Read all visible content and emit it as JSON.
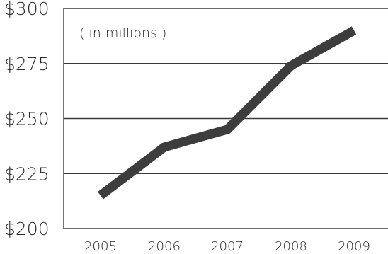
{
  "chart_data": {
    "type": "line",
    "title": "",
    "annotation": "( in millions )",
    "xlabel": "",
    "ylabel": "",
    "categories": [
      "2005",
      "2006",
      "2007",
      "2008",
      "2009"
    ],
    "series": [
      {
        "values": [
          215,
          237,
          245,
          274,
          290
        ]
      }
    ],
    "ylim": [
      200,
      300
    ],
    "yticks": [
      "$300",
      "$275",
      "$250",
      "$225",
      "$200"
    ],
    "ytick_values": [
      300,
      275,
      250,
      225,
      200
    ],
    "grid": true,
    "legend": "none",
    "colors": {
      "line": "#3d3d3d",
      "grid": "#3a3a3a",
      "text": "#2a2a2a"
    }
  }
}
